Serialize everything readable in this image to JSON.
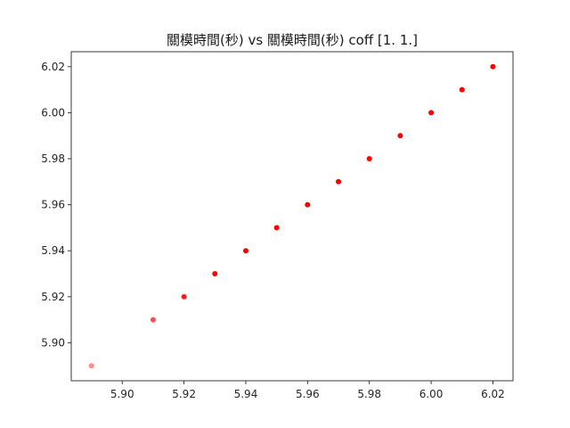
{
  "chart_data": {
    "type": "scatter",
    "title": "關模時間(秒) vs 關模時間(秒) coff [1. 1.]",
    "xlabel": "",
    "ylabel": "",
    "xlim": [
      5.8835,
      6.0265
    ],
    "ylim": [
      5.8835,
      6.0265
    ],
    "x_ticks": [
      5.9,
      5.92,
      5.94,
      5.96,
      5.98,
      6.0,
      6.02
    ],
    "x_tick_labels": [
      "5.90",
      "5.92",
      "5.94",
      "5.96",
      "5.98",
      "6.00",
      "6.02"
    ],
    "y_ticks": [
      5.9,
      5.92,
      5.94,
      5.96,
      5.98,
      6.0,
      6.02
    ],
    "y_tick_labels": [
      "5.90",
      "5.92",
      "5.94",
      "5.96",
      "5.98",
      "6.00",
      "6.02"
    ],
    "grid": false,
    "marker_color": "#ff0000",
    "points": [
      {
        "x": 5.89,
        "y": 5.89,
        "opacity": 0.45
      },
      {
        "x": 5.91,
        "y": 5.91,
        "opacity": 0.7
      },
      {
        "x": 5.92,
        "y": 5.92,
        "opacity": 0.9
      },
      {
        "x": 5.93,
        "y": 5.93,
        "opacity": 1.0
      },
      {
        "x": 5.94,
        "y": 5.94,
        "opacity": 1.0
      },
      {
        "x": 5.95,
        "y": 5.95,
        "opacity": 1.0
      },
      {
        "x": 5.96,
        "y": 5.96,
        "opacity": 1.0
      },
      {
        "x": 5.97,
        "y": 5.97,
        "opacity": 1.0
      },
      {
        "x": 5.98,
        "y": 5.98,
        "opacity": 1.0
      },
      {
        "x": 5.99,
        "y": 5.99,
        "opacity": 1.0
      },
      {
        "x": 6.0,
        "y": 6.0,
        "opacity": 1.0
      },
      {
        "x": 6.01,
        "y": 6.01,
        "opacity": 1.0
      },
      {
        "x": 6.02,
        "y": 6.02,
        "opacity": 1.0
      }
    ]
  }
}
